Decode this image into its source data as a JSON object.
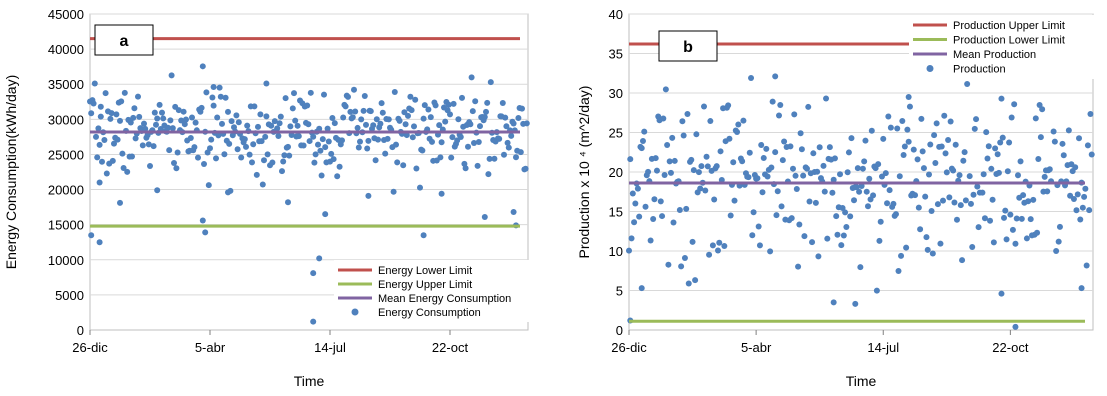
{
  "chart_data": [
    {
      "type": "scatter",
      "panel_label": "a",
      "xlabel": "Time",
      "ylabel": "Energy Consumption(kWh/day)",
      "ylim": [
        0,
        45000
      ],
      "yticks": [
        "0",
        "5000",
        "10000",
        "15000",
        "20000",
        "25000",
        "30000",
        "35000",
        "40000",
        "45000"
      ],
      "xlim": [
        "2013-12-26",
        "2014-12-26"
      ],
      "xticks": [
        {
          "date": "2013-12-26",
          "label": "26-dic"
        },
        {
          "date": "2014-04-05",
          "label": "5-abr"
        },
        {
          "date": "2014-07-14",
          "label": "14-jul"
        },
        {
          "date": "2014-10-22",
          "label": "22-oct"
        }
      ],
      "grid": "horizontal",
      "legend_position": "bottom-right",
      "colors": {
        "upper_line": "#c0504d",
        "lower_line": "#9bbb59",
        "mean_line": "#8064a2",
        "points": "#4f81bd"
      },
      "series": [
        {
          "name": "Energy Lower Limit",
          "kind": "line",
          "y": 41500,
          "color": "#c0504d"
        },
        {
          "name": "Energy Upper Limit",
          "kind": "line",
          "y": 14800,
          "color": "#9bbb59"
        },
        {
          "name": "Mean Energy Consumption",
          "kind": "line",
          "y": 28200,
          "color": "#8064a2"
        },
        {
          "name": "Energy Consumption",
          "kind": "points",
          "color": "#4f81bd",
          "center": 28200,
          "spread": 3000,
          "n": 365,
          "seed": 7,
          "outliers": [
            {
              "date": "2013-12-27",
              "y": 13500
            },
            {
              "date": "2014-01-03",
              "y": 12500
            },
            {
              "date": "2014-01-03",
              "y": 21000
            },
            {
              "date": "2014-01-04",
              "y": 31800
            },
            {
              "date": "2014-01-20",
              "y": 18100
            },
            {
              "date": "2014-02-20",
              "y": 19900
            },
            {
              "date": "2014-03-30",
              "y": 15600
            },
            {
              "date": "2014-04-01",
              "y": 13900
            },
            {
              "date": "2014-04-08",
              "y": 34600
            },
            {
              "date": "2014-04-20",
              "y": 19600
            },
            {
              "date": "2014-05-22",
              "y": 35100
            },
            {
              "date": "2014-06-09",
              "y": 18200
            },
            {
              "date": "2014-06-30",
              "y": 1200
            },
            {
              "date": "2014-06-30",
              "y": 8100
            },
            {
              "date": "2014-07-05",
              "y": 10200
            },
            {
              "date": "2014-07-10",
              "y": 16500
            },
            {
              "date": "2014-08-15",
              "y": 19100
            },
            {
              "date": "2014-09-30",
              "y": 13500
            },
            {
              "date": "2014-10-15",
              "y": 19400
            },
            {
              "date": "2014-11-20",
              "y": 16100
            },
            {
              "date": "2014-12-14",
              "y": 16800
            },
            {
              "date": "2014-12-16",
              "y": 14900
            }
          ]
        }
      ]
    },
    {
      "type": "scatter",
      "panel_label": "b",
      "xlabel": "Time",
      "ylabel": "Production  x 10  ⁴ (m^2/day)",
      "ylim": [
        0,
        40
      ],
      "yticks": [
        "0",
        "5",
        "10",
        "15",
        "20",
        "25",
        "30",
        "35",
        "40"
      ],
      "xlim": [
        "2013-12-26",
        "2014-12-26"
      ],
      "xticks": [
        {
          "date": "2013-12-26",
          "label": "26-dic"
        },
        {
          "date": "2014-04-05",
          "label": "5-abr"
        },
        {
          "date": "2014-07-14",
          "label": "14-jul"
        },
        {
          "date": "2014-10-22",
          "label": "22-oct"
        }
      ],
      "grid": "horizontal",
      "legend_position": "top-right",
      "colors": {
        "upper_line": "#c0504d",
        "lower_line": "#9bbb59",
        "mean_line": "#8064a2",
        "points": "#4f81bd"
      },
      "series": [
        {
          "name": "Production Upper Limit",
          "kind": "line",
          "y": 36.2,
          "color": "#c0504d"
        },
        {
          "name": "Production Lower Limit",
          "kind": "line",
          "y": 1.1,
          "color": "#9bbb59"
        },
        {
          "name": "Mean Production",
          "kind": "line",
          "y": 18.6,
          "color": "#8064a2"
        },
        {
          "name": "Production",
          "kind": "points",
          "color": "#4f81bd",
          "center": 19,
          "spread": 5.5,
          "n": 365,
          "seed": 13,
          "outliers": [
            {
              "date": "2013-12-27",
              "y": 1.2
            },
            {
              "date": "2014-01-05",
              "y": 5.3
            },
            {
              "date": "2014-04-20",
              "y": 32.1
            },
            {
              "date": "2014-06-05",
              "y": 3.5
            },
            {
              "date": "2014-06-22",
              "y": 3.3
            },
            {
              "date": "2014-08-03",
              "y": 29.5
            },
            {
              "date": "2014-10-26",
              "y": 0.4
            },
            {
              "date": "2014-10-15",
              "y": 4.6
            },
            {
              "date": "2014-12-17",
              "y": 5.3
            }
          ]
        }
      ]
    }
  ]
}
